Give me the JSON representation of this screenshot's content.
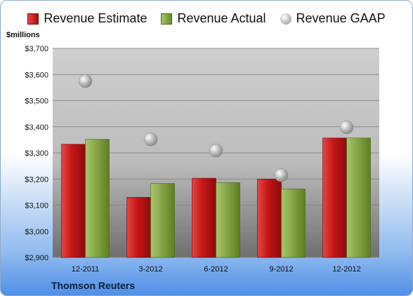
{
  "chart_data": {
    "type": "bar",
    "ylabel": "$millions",
    "categories": [
      "12-2011",
      "3-2012",
      "6-2012",
      "9-2012",
      "12-2012"
    ],
    "series": [
      {
        "name": "Revenue Estimate",
        "kind": "bar",
        "color": "#c51a1a",
        "values": [
          3333,
          3130,
          3203,
          3200,
          3357
        ]
      },
      {
        "name": "Revenue Actual",
        "kind": "bar",
        "color": "#8aab4a",
        "values": [
          3352,
          3183,
          3186,
          3162,
          3357
        ]
      },
      {
        "name": "Revenue GAAP",
        "kind": "marker",
        "color": "#b0b0b0",
        "values": [
          3575,
          3352,
          3309,
          3215,
          3398
        ]
      }
    ],
    "ylim": [
      2900,
      3700
    ],
    "yticks": [
      2900,
      3000,
      3100,
      3200,
      3300,
      3400,
      3500,
      3600,
      3700
    ],
    "ytick_labels": [
      "$2,900",
      "$3,000",
      "$3,100",
      "$3,200",
      "$3,300",
      "$3,400",
      "$3,500",
      "$3,600",
      "$3,700"
    ],
    "grid": true,
    "legend_position": "top"
  },
  "source_label": "Thomson Reuters"
}
